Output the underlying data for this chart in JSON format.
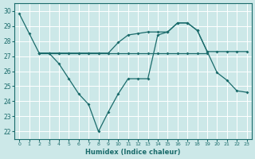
{
  "xlabel": "Humidex (Indice chaleur)",
  "bg_color": "#cce8e8",
  "grid_color": "#ffffff",
  "line_color": "#1a6b6b",
  "xlim": [
    -0.5,
    23.5
  ],
  "ylim": [
    21.5,
    30.5
  ],
  "yticks": [
    22,
    23,
    24,
    25,
    26,
    27,
    28,
    29,
    30
  ],
  "xticks": [
    0,
    1,
    2,
    3,
    4,
    5,
    6,
    7,
    8,
    9,
    10,
    11,
    12,
    13,
    14,
    15,
    16,
    17,
    18,
    19,
    20,
    21,
    22,
    23
  ],
  "line1_x": [
    0,
    1,
    2,
    3,
    4,
    5,
    6,
    7,
    8,
    9,
    10,
    11,
    12,
    13,
    14,
    15,
    16,
    17,
    18,
    19,
    20,
    21,
    22,
    23
  ],
  "line1_y": [
    29.8,
    28.5,
    27.2,
    27.2,
    27.2,
    27.2,
    27.2,
    27.2,
    27.2,
    27.2,
    27.9,
    28.4,
    28.5,
    28.6,
    28.6,
    28.6,
    29.2,
    29.2,
    28.7,
    27.3,
    27.3,
    27.3,
    27.3,
    27.3
  ],
  "line2_x": [
    2,
    3,
    4,
    5,
    6,
    7,
    8,
    9,
    10,
    11,
    12,
    13,
    14,
    15,
    16,
    17,
    18,
    19
  ],
  "line2_y": [
    27.2,
    27.2,
    27.2,
    27.2,
    27.2,
    27.2,
    27.2,
    27.2,
    27.2,
    27.2,
    27.2,
    27.2,
    27.2,
    27.2,
    27.2,
    27.2,
    27.2,
    27.2
  ],
  "line3_x": [
    2,
    3,
    4,
    5,
    6,
    7,
    8,
    9,
    10,
    11,
    12,
    13,
    14,
    15,
    16,
    17,
    18,
    19,
    20,
    21,
    22,
    23
  ],
  "line3_y": [
    27.2,
    27.2,
    26.5,
    25.5,
    24.5,
    23.8,
    22.0,
    23.3,
    24.5,
    25.5,
    25.5,
    25.5,
    28.4,
    28.6,
    29.2,
    29.2,
    28.7,
    27.3,
    25.9,
    25.4,
    24.7,
    24.6
  ]
}
